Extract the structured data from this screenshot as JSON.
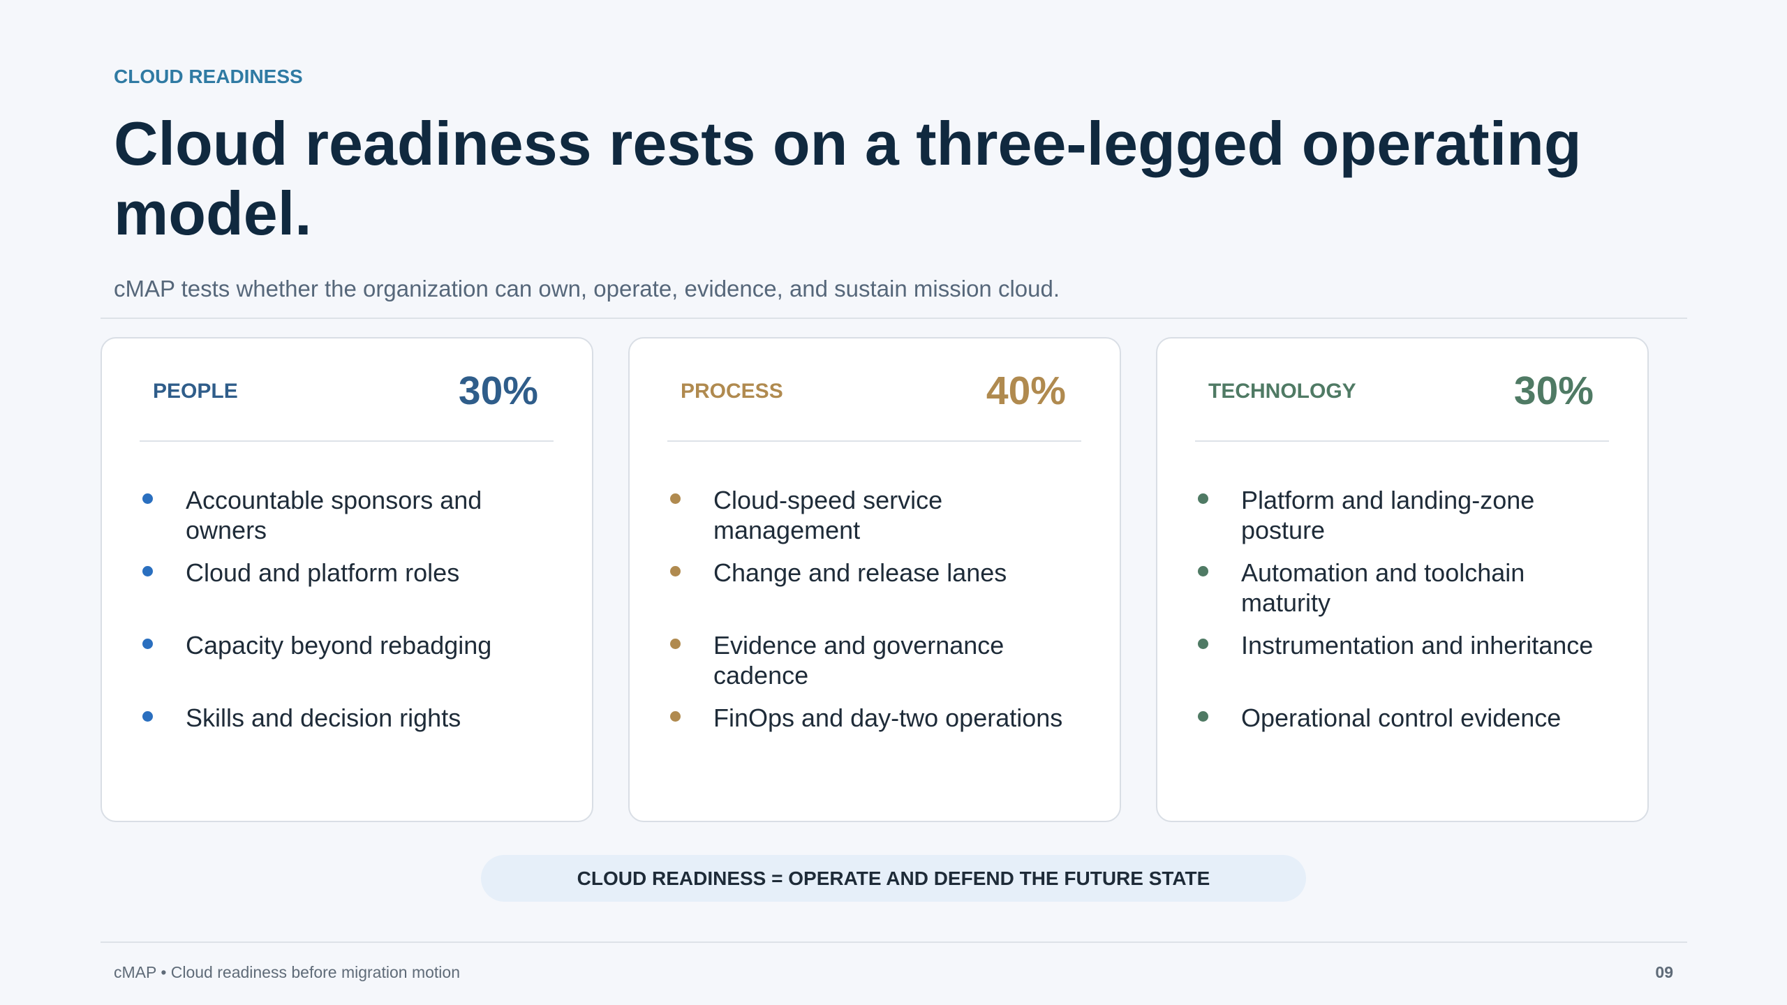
{
  "eyebrow": "CLOUD READINESS",
  "title": "Cloud readiness rests on a three-legged operating model.",
  "subtitle": "cMAP tests whether the organization can own, operate, evidence, and sustain mission cloud.",
  "cards": [
    {
      "label": "PEOPLE",
      "share": "30%",
      "items": [
        "Accountable sponsors and owners",
        "Cloud and platform roles",
        "Capacity beyond rebadging",
        "Skills and decision rights"
      ]
    },
    {
      "label": "PROCESS",
      "share": "40%",
      "items": [
        "Cloud-speed service management",
        "Change and release lanes",
        "Evidence and governance cadence",
        "FinOps and day-two operations"
      ]
    },
    {
      "label": "TECHNOLOGY",
      "share": "30%",
      "items": [
        "Platform and landing-zone posture",
        "Automation and toolchain maturity",
        "Instrumentation and inheritance",
        "Operational control evidence"
      ]
    }
  ],
  "banner": "CLOUD READINESS = OPERATE AND DEFEND THE FUTURE STATE",
  "footer": {
    "text": "cMAP • Cloud readiness before migration motion",
    "page": "09"
  }
}
